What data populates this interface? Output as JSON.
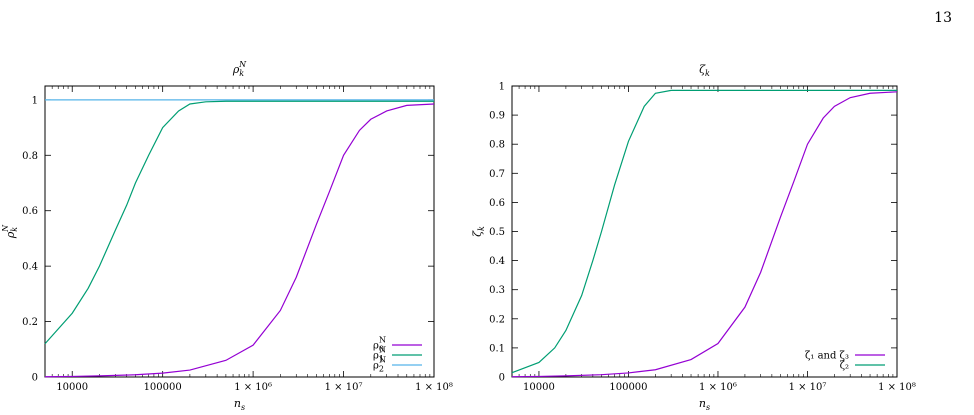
{
  "page": {
    "number": "13"
  },
  "colors": {
    "purple": "#9400d3",
    "green": "#009e73",
    "cyan": "#56b4e9",
    "teal": "#2bb6a8"
  },
  "chart_data": [
    {
      "id": "left",
      "type": "line",
      "title": "ρ_k^N",
      "xlabel": "n_s",
      "ylabel": "ρ_k^N",
      "xscale": "log",
      "xlim": [
        5000,
        100000000
      ],
      "ylim": [
        0,
        1.05
      ],
      "xticks": [
        {
          "v": 10000,
          "label": "10000"
        },
        {
          "v": 100000,
          "label": "100000"
        },
        {
          "v": 1000000,
          "label": "1 × 10⁶"
        },
        {
          "v": 10000000,
          "label": "1 × 10⁷"
        },
        {
          "v": 100000000,
          "label": "1 × 10⁸"
        }
      ],
      "yticks": [
        {
          "v": 0,
          "label": "0"
        },
        {
          "v": 0.2,
          "label": "0.2"
        },
        {
          "v": 0.4,
          "label": "0.4"
        },
        {
          "v": 0.6,
          "label": "0.6"
        },
        {
          "v": 0.8,
          "label": "0.8"
        },
        {
          "v": 1,
          "label": "1"
        }
      ],
      "legend": "bottom-right",
      "series": [
        {
          "name": "ρ_0^N",
          "color": "#9400d3",
          "x": [
            5000,
            10000,
            20000,
            50000,
            100000,
            200000,
            500000,
            1000000,
            2000000,
            3000000,
            5000000,
            7000000,
            10000000,
            15000000,
            20000000,
            30000000,
            50000000,
            100000000
          ],
          "y": [
            0.001,
            0.002,
            0.004,
            0.008,
            0.014,
            0.025,
            0.06,
            0.115,
            0.24,
            0.36,
            0.55,
            0.67,
            0.8,
            0.89,
            0.93,
            0.96,
            0.98,
            0.985
          ]
        },
        {
          "name": "ρ_1^N",
          "color": "#009e73",
          "x": [
            5000,
            10000,
            15000,
            20000,
            30000,
            40000,
            50000,
            70000,
            100000,
            150000,
            200000,
            300000,
            500000,
            1000000,
            10000000,
            100000000
          ],
          "y": [
            0.12,
            0.23,
            0.32,
            0.4,
            0.53,
            0.62,
            0.7,
            0.8,
            0.9,
            0.96,
            0.985,
            0.993,
            0.995,
            0.995,
            0.995,
            0.995
          ]
        },
        {
          "name": "ρ_2^N",
          "color": "#56b4e9",
          "x": [
            5000,
            100000000
          ],
          "y": [
            1.0,
            1.0
          ]
        }
      ]
    },
    {
      "id": "right",
      "type": "line",
      "title": "ζ_k",
      "xlabel": "n_s",
      "ylabel": "ζ_k",
      "xscale": "log",
      "xlim": [
        5000,
        100000000
      ],
      "ylim": [
        0,
        1.0
      ],
      "xticks": [
        {
          "v": 10000,
          "label": "10000"
        },
        {
          "v": 100000,
          "label": "100000"
        },
        {
          "v": 1000000,
          "label": "1 × 10⁶"
        },
        {
          "v": 10000000,
          "label": "1 × 10⁷"
        },
        {
          "v": 100000000,
          "label": "1 × 10⁸"
        }
      ],
      "yticks": [
        {
          "v": 0,
          "label": "0"
        },
        {
          "v": 0.1,
          "label": "0.1"
        },
        {
          "v": 0.2,
          "label": "0.2"
        },
        {
          "v": 0.3,
          "label": "0.3"
        },
        {
          "v": 0.4,
          "label": "0.4"
        },
        {
          "v": 0.5,
          "label": "0.5"
        },
        {
          "v": 0.6,
          "label": "0.6"
        },
        {
          "v": 0.7,
          "label": "0.7"
        },
        {
          "v": 0.8,
          "label": "0.8"
        },
        {
          "v": 0.9,
          "label": "0.9"
        },
        {
          "v": 1,
          "label": "1"
        }
      ],
      "legend": "bottom-right",
      "series": [
        {
          "name": "ζ₁ and ζ₃",
          "color": "#9400d3",
          "x": [
            5000,
            10000,
            20000,
            50000,
            100000,
            200000,
            500000,
            1000000,
            2000000,
            3000000,
            5000000,
            7000000,
            10000000,
            15000000,
            20000000,
            30000000,
            50000000,
            100000000
          ],
          "y": [
            0.001,
            0.002,
            0.004,
            0.008,
            0.014,
            0.025,
            0.06,
            0.115,
            0.24,
            0.36,
            0.55,
            0.67,
            0.8,
            0.89,
            0.93,
            0.96,
            0.975,
            0.98
          ]
        },
        {
          "name": "ζ₂",
          "color": "#009e73",
          "x": [
            5000,
            10000,
            15000,
            20000,
            30000,
            40000,
            50000,
            70000,
            100000,
            150000,
            200000,
            300000,
            500000,
            1000000,
            10000000,
            100000000
          ],
          "y": [
            0.015,
            0.05,
            0.1,
            0.16,
            0.28,
            0.4,
            0.5,
            0.66,
            0.81,
            0.93,
            0.975,
            0.985,
            0.985,
            0.985,
            0.985,
            0.985
          ]
        }
      ]
    }
  ]
}
